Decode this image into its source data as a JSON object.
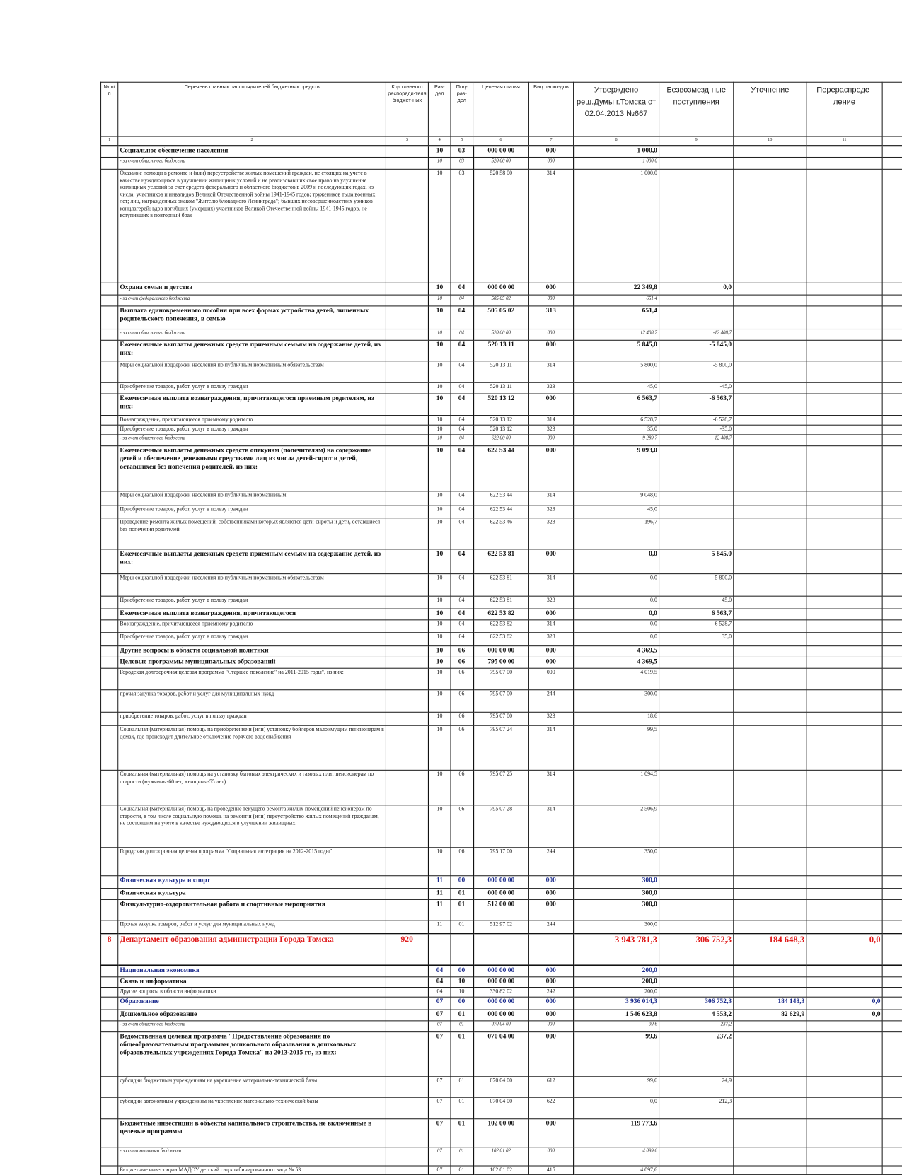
{
  "colors": {
    "department": "#e01b1b",
    "section_blue": "#1a2a8c",
    "text": "#222222"
  },
  "header": {
    "cols": [
      "№ п/п",
      "Перечень главных распорядителей бюджетных средств",
      "Код главного распоряди-теля бюджет-ных",
      "Раз-дел",
      "Под-раз-дел",
      "Целевая статья",
      "Вид расхо-дов",
      "Утверждено реш.Думы г.Томска от 02.04.2013 №667",
      "Безвозмезд-ные поступления",
      "Уточнение",
      "Перераспреде-ление",
      ""
    ],
    "numbers": [
      "1",
      "2",
      "3",
      "4",
      "5",
      "6",
      "7",
      "8",
      "9",
      "10",
      "11",
      ""
    ]
  },
  "rows": [
    {
      "type": "bold",
      "cells": [
        "",
        "Социальное обеспечение населения",
        "",
        "10",
        "03",
        "000 00 00",
        "000",
        "1 000,0",
        "",
        "",
        "",
        ""
      ]
    },
    {
      "type": "source",
      "cells": [
        "",
        "- за счет областного бюджета",
        "",
        "10",
        "03",
        "520 00 00",
        "000",
        "1 000,0",
        "",
        "",
        "",
        ""
      ]
    },
    {
      "type": "item",
      "cells": [
        "",
        "Оказание помощи в ремонте и (или) переустройстве жилых помещений граждан, не стоящих на учете в качестве нуждающихся в улучшении жилищных условий и не реализовавших свое право на улучшение жилищных условий за счет средств федерального и областного бюджетов в 2009 и последующих годах, из числа: участников и инвалидов Великой Отечественной войны 1941-1945 годов; тружеников тыла военных лет; лиц, награжденных знаком \"Жителю блокадного Ленинграда\"; бывших несовершеннолетних узников концлагерей; вдов погибших (умерших) участников Великой Отечественной войны 1941-1945 годов, не вступивших в повторный брак",
        "",
        "10",
        "03",
        "520 58 00",
        "314",
        "1 000,0",
        "",
        "",
        "",
        ""
      ]
    },
    {
      "type": "bold",
      "cells": [
        "",
        "Охрана семьи и детства",
        "",
        "10",
        "04",
        "000 00 00",
        "000",
        "22 349,8",
        "0,0",
        "",
        "",
        ""
      ]
    },
    {
      "type": "source",
      "cells": [
        "",
        "- за счет федерального бюджета",
        "",
        "10",
        "04",
        "505 05 02",
        "000",
        "651,4",
        "",
        "",
        "",
        ""
      ]
    },
    {
      "type": "bold",
      "cells": [
        "",
        "Выплата единовременного пособия при всех формах устройства детей, лишенных родительского попечения, в семью",
        "",
        "10",
        "04",
        "505 05 02",
        "313",
        "651,4",
        "",
        "",
        "",
        ""
      ]
    },
    {
      "type": "source",
      "cells": [
        "",
        "- за счет областного бюджета",
        "",
        "10",
        "04",
        "520 00 00",
        "000",
        "12 408,7",
        "-12 408,7",
        "",
        "",
        ""
      ]
    },
    {
      "type": "bold",
      "cells": [
        "",
        "Ежемесячные выплаты денежных средств приемным семьям на содержание детей, из них:",
        "",
        "10",
        "04",
        "520 13 11",
        "000",
        "5 845,0",
        "-5 845,0",
        "",
        "",
        ""
      ]
    },
    {
      "type": "item",
      "cells": [
        "",
        "Меры социальной поддержки населения по публичным нормативным обязательствам",
        "",
        "10",
        "04",
        "520 13 11",
        "314",
        "5 800,0",
        "-5 800,0",
        "",
        "",
        ""
      ]
    },
    {
      "type": "item",
      "cells": [
        "",
        "Приобретение товаров, работ, услуг в пользу граждан",
        "",
        "10",
        "04",
        "520 13 11",
        "323",
        "45,0",
        "-45,0",
        "",
        "",
        ""
      ]
    },
    {
      "type": "bold",
      "cells": [
        "",
        "Ежемесячная выплата вознаграждения, причитающегося приемным родителям, из них:",
        "",
        "10",
        "04",
        "520 13 12",
        "000",
        "6 563,7",
        "-6 563,7",
        "",
        "",
        ""
      ]
    },
    {
      "type": "item",
      "cells": [
        "",
        "Вознаграждение, причитающееся приемному родителю",
        "",
        "10",
        "04",
        "520 13 12",
        "314",
        "6 528,7",
        "-6 528,7",
        "",
        "",
        ""
      ]
    },
    {
      "type": "item",
      "cells": [
        "",
        "Приобретение товаров, работ, услуг в пользу граждан",
        "",
        "10",
        "04",
        "520 13 12",
        "323",
        "35,0",
        "-35,0",
        "",
        "",
        ""
      ]
    },
    {
      "type": "source",
      "cells": [
        "",
        "- за счет областного бюджета",
        "",
        "10",
        "04",
        "622 00 00",
        "000",
        "9 289,7",
        "12 408,7",
        "",
        "",
        ""
      ]
    },
    {
      "type": "bold",
      "cells": [
        "",
        "Ежемесячные выплаты денежных средств опекунам (попечителям) на содержание детей и обеспечение денежными средствами лиц из числа детей-сирот и детей, оставшихся без попечения родителей, из них:",
        "",
        "10",
        "04",
        "622 53 44",
        "000",
        "9 093,0",
        "",
        "",
        "",
        ""
      ]
    },
    {
      "type": "item",
      "cells": [
        "",
        "Меры социальной поддержки населения по публичным нормативным",
        "",
        "10",
        "04",
        "622 53 44",
        "314",
        "9 048,0",
        "",
        "",
        "",
        ""
      ]
    },
    {
      "type": "item",
      "cells": [
        "",
        "Приобретение товаров, работ, услуг в пользу граждан",
        "",
        "10",
        "04",
        "622 53 44",
        "323",
        "45,0",
        "",
        "",
        "",
        ""
      ]
    },
    {
      "type": "item",
      "cells": [
        "",
        "Проведение ремонта жилых помещений, собственниками которых являются дети-сироты и дети, оставшиеся без попечения родителей",
        "",
        "10",
        "04",
        "622 53 46",
        "323",
        "196,7",
        "",
        "",
        "",
        ""
      ]
    },
    {
      "type": "bold",
      "cells": [
        "",
        "Ежемесячные выплаты денежных средств приемным семьям на содержание детей, из них:",
        "",
        "10",
        "04",
        "622 53 81",
        "000",
        "0,0",
        "5 845,0",
        "",
        "",
        ""
      ]
    },
    {
      "type": "item",
      "cells": [
        "",
        "Меры социальной поддержки населения по публичным нормативным обязательствам",
        "",
        "10",
        "04",
        "622 53 81",
        "314",
        "0,0",
        "5 800,0",
        "",
        "",
        ""
      ]
    },
    {
      "type": "item",
      "cells": [
        "",
        "Приобретение товаров, работ, услуг в пользу граждан",
        "",
        "10",
        "04",
        "622 53 81",
        "323",
        "0,0",
        "45,0",
        "",
        "",
        ""
      ]
    },
    {
      "type": "bold",
      "cells": [
        "",
        "Ежемесячная выплата вознаграждения, причитающегося",
        "",
        "10",
        "04",
        "622 53 82",
        "000",
        "0,0",
        "6 563,7",
        "",
        "",
        ""
      ]
    },
    {
      "type": "item",
      "cells": [
        "",
        "Вознаграждение, причитающееся приемному родителю",
        "",
        "10",
        "04",
        "622 53 82",
        "314",
        "0,0",
        "6 528,7",
        "",
        "",
        ""
      ]
    },
    {
      "type": "item",
      "cells": [
        "",
        "Приобретение товаров, работ, услуг в пользу граждан",
        "",
        "10",
        "04",
        "622 53 82",
        "323",
        "0,0",
        "35,0",
        "",
        "",
        ""
      ]
    },
    {
      "type": "bold",
      "cells": [
        "",
        "Другие вопросы в области социальной политики",
        "",
        "10",
        "06",
        "000 00 00",
        "000",
        "4 369,5",
        "",
        "",
        "",
        ""
      ]
    },
    {
      "type": "bold",
      "cells": [
        "",
        "Целевые программы муниципальных образований",
        "",
        "10",
        "06",
        "795 00 00",
        "000",
        "4 369,5",
        "",
        "",
        "",
        ""
      ]
    },
    {
      "type": "item",
      "cells": [
        "",
        "Городская долгосрочная целевая программа \"Старшее поколение\" на 2011-2015 годы\", из них:",
        "",
        "10",
        "06",
        "795 07 00",
        "000",
        "4 019,5",
        "",
        "",
        "",
        ""
      ]
    },
    {
      "type": "item",
      "cells": [
        "",
        "прочая закупка товаров, работ и услуг для муниципальных нужд",
        "",
        "10",
        "06",
        "795 07 00",
        "244",
        "300,0",
        "",
        "",
        "",
        ""
      ]
    },
    {
      "type": "item",
      "cells": [
        "",
        "приобретение товаров, работ, услуг в пользу граждан",
        "",
        "10",
        "06",
        "795 07 00",
        "323",
        "18,6",
        "",
        "",
        "",
        ""
      ]
    },
    {
      "type": "item",
      "cells": [
        "",
        "Социальная (материальная) помощь на приобретение и (или) установку бойлеров малоимущим пенсионерам в домах, где происходит длительное отключение горячего водоснабжения",
        "",
        "10",
        "06",
        "795 07 24",
        "314",
        "99,5",
        "",
        "",
        "",
        ""
      ]
    },
    {
      "type": "item",
      "cells": [
        "",
        "Социальная (материальная) помощь на установку бытовых электрических и газовых плит пенсионерам по старости (мужчины-60лет, женщины-55 лет)",
        "",
        "10",
        "06",
        "795 07 25",
        "314",
        "1 094,5",
        "",
        "",
        "",
        ""
      ]
    },
    {
      "type": "item",
      "cells": [
        "",
        "Социальная (материальная) помощь на проведение текущего ремонта жилых помещений пенсионерам по старости, в том числе социальную помощь на ремонт и (или) переустройство жилых помещений гражданам, не состоящим на учете в качестве нуждающихся в улучшении жилищных",
        "",
        "10",
        "06",
        "795 07 28",
        "314",
        "2 506,9",
        "",
        "",
        "",
        ""
      ]
    },
    {
      "type": "item",
      "cells": [
        "",
        "Городская долгосрочная целевая программа \"Социальная интеграция на 2012-2015 годы\"",
        "",
        "10",
        "06",
        "795 17 00",
        "244",
        "350,0",
        "",
        "",
        "",
        ""
      ]
    },
    {
      "type": "blue",
      "cells": [
        "",
        "Физическая культура и спорт",
        "",
        "11",
        "00",
        "000 00 00",
        "000",
        "300,0",
        "",
        "",
        "",
        ""
      ]
    },
    {
      "type": "bold",
      "cells": [
        "",
        "Физическая культура",
        "",
        "11",
        "01",
        "000 00 00",
        "000",
        "300,0",
        "",
        "",
        "",
        ""
      ]
    },
    {
      "type": "bold",
      "cells": [
        "",
        "Физкультурно-оздоровительная работа и спортивные мероприятия",
        "",
        "11",
        "01",
        "512 00 00",
        "000",
        "300,0",
        "",
        "",
        "",
        ""
      ]
    },
    {
      "type": "item",
      "cells": [
        "",
        "Прочая закупка товаров, работ и услуг для муниципальных нужд",
        "",
        "11",
        "01",
        "512 97 02",
        "244",
        "300,0",
        "",
        "",
        "",
        ""
      ]
    },
    {
      "type": "dept",
      "cells": [
        "8",
        "Департамент образования администрации Города Томска",
        "920",
        "",
        "",
        "",
        "",
        "3 943 781,3",
        "306 752,3",
        "184 648,3",
        "0,0",
        ""
      ]
    },
    {
      "type": "blue",
      "cells": [
        "",
        "Национальная экономика",
        "",
        "04",
        "00",
        "000 00 00",
        "000",
        "200,0",
        "",
        "",
        "",
        ""
      ]
    },
    {
      "type": "bold",
      "cells": [
        "",
        "Связь и информатика",
        "",
        "04",
        "10",
        "000 00 00",
        "000",
        "200,0",
        "",
        "",
        "",
        ""
      ]
    },
    {
      "type": "item",
      "cells": [
        "",
        "Другие вопросы в области информатики",
        "",
        "04",
        "10",
        "330 82 02",
        "242",
        "200,0",
        "",
        "",
        "",
        ""
      ]
    },
    {
      "type": "blue",
      "cells": [
        "",
        "Образование",
        "",
        "07",
        "00",
        "000 00 00",
        "000",
        "3 936 014,3",
        "306 752,3",
        "184 148,3",
        "0,0",
        ""
      ]
    },
    {
      "type": "bold",
      "cells": [
        "",
        "Дошкольное образование",
        "",
        "07",
        "01",
        "000 00 00",
        "000",
        "1 546 623,8",
        "4 553,2",
        "82 629,9",
        "0,0",
        ""
      ]
    },
    {
      "type": "source",
      "cells": [
        "",
        "- за счет областного бюджета",
        "",
        "07",
        "01",
        "070 04 00",
        "000",
        "99,6",
        "237,2",
        "",
        "",
        ""
      ]
    },
    {
      "type": "bold",
      "cells": [
        "",
        "Ведомственная целевая программа \"Предоставление образования по общеобразовательным программам дошкольного образования в дошкольных образовательных учреждениях Города Томска\" на 2013-2015 гг., из них:",
        "",
        "07",
        "01",
        "070 04 00",
        "000",
        "99,6",
        "237,2",
        "",
        "",
        ""
      ]
    },
    {
      "type": "item",
      "cells": [
        "",
        "субсидии бюджетным учреждениям на укрепление материально-технической базы",
        "",
        "07",
        "01",
        "070 04 00",
        "612",
        "99,6",
        "24,9",
        "",
        "",
        ""
      ]
    },
    {
      "type": "item",
      "cells": [
        "",
        "субсидии автономным учреждениям на укрепление материально-технической базы",
        "",
        "07",
        "01",
        "070 04 00",
        "622",
        "0,0",
        "212,3",
        "",
        "",
        ""
      ]
    },
    {
      "type": "bold",
      "cells": [
        "",
        "Бюджетные инвестиции в объекты капитального строительства, не включенные в целевые программы",
        "",
        "07",
        "01",
        "102 00 00",
        "000",
        "119 773,6",
        "",
        "",
        "",
        ""
      ]
    },
    {
      "type": "source",
      "cells": [
        "",
        "- за счет местного бюджета",
        "",
        "07",
        "01",
        "102 01 02",
        "000",
        "4 099,6",
        "",
        "",
        "",
        ""
      ]
    },
    {
      "type": "item",
      "cells": [
        "",
        "Бюджетные инвестиции МАДОУ детский сад комбинированного вида № 53",
        "",
        "07",
        "01",
        "102 01 02",
        "415",
        "4 097,6",
        "",
        "",
        "",
        ""
      ]
    }
  ]
}
